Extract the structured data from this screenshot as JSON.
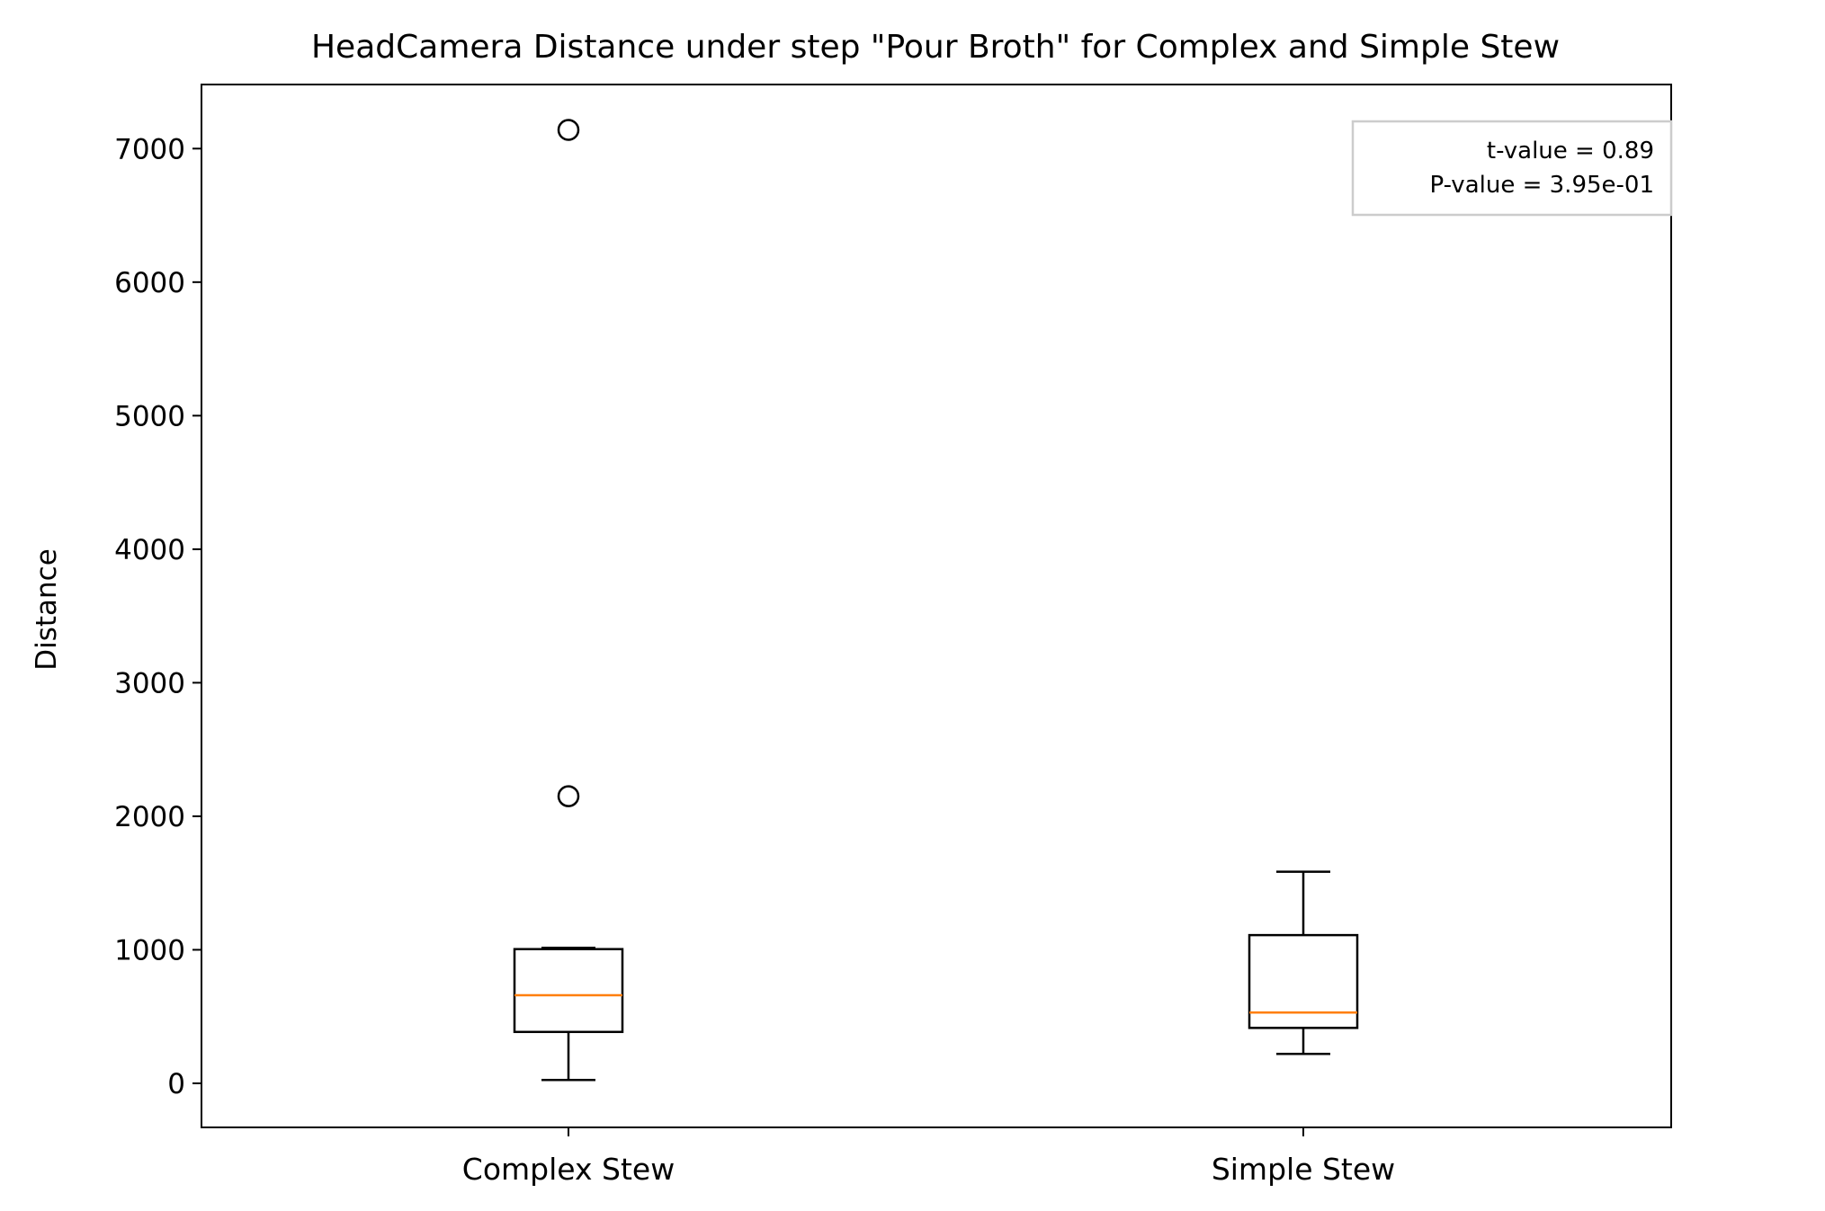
{
  "chart_data": {
    "type": "box",
    "title": "HeadCamera Distance under step \"Pour Broth\" for Complex and Simple Stew",
    "xlabel": "",
    "ylabel": "Distance",
    "ylim": [
      -330,
      7480
    ],
    "yticks": [
      "0",
      "1000",
      "2000",
      "3000",
      "4000",
      "5000",
      "6000",
      "7000"
    ],
    "ytick_values": [
      0,
      1000,
      2000,
      3000,
      4000,
      5000,
      6000,
      7000
    ],
    "grid": false,
    "categories": [
      "Complex Stew",
      "Simple Stew"
    ],
    "series": [
      {
        "category": "Complex Stew",
        "whisker_low": 25,
        "q1": 385,
        "median": 660,
        "q3": 1005,
        "whisker_high": 1015,
        "outliers": [
          2150,
          7140
        ]
      },
      {
        "category": "Simple Stew",
        "whisker_low": 220,
        "q1": 415,
        "median": 530,
        "q3": 1110,
        "whisker_high": 1585,
        "outliers": []
      }
    ],
    "annotation": {
      "lines": [
        "t-value = 0.89",
        "P-value = 3.95e-01"
      ],
      "placement": "top-right"
    },
    "colors": {
      "box": "#000000",
      "median": "#ff7f0e",
      "annotation_border": "#cccccc"
    }
  }
}
